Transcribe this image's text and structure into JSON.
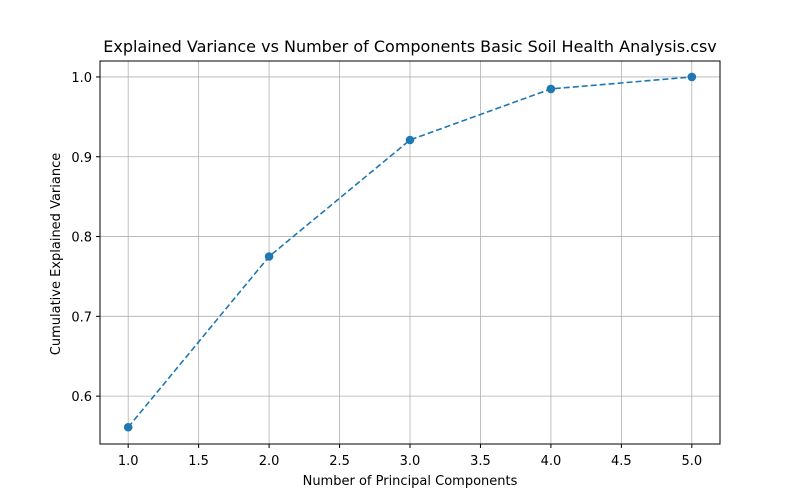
{
  "chart_data": {
    "type": "line",
    "title": "Explained Variance vs Number of Components Basic Soil Health Analysis.csv",
    "xlabel": "Number of Principal Components",
    "ylabel": "Cumulative Explained Variance",
    "xlim": [
      0.8,
      5.2
    ],
    "ylim": [
      0.54,
      1.02
    ],
    "xticks": [
      1.0,
      1.5,
      2.0,
      2.5,
      3.0,
      3.5,
      4.0,
      4.5,
      5.0
    ],
    "xtick_labels": [
      "1.0",
      "1.5",
      "2.0",
      "2.5",
      "3.0",
      "3.5",
      "4.0",
      "4.5",
      "5.0"
    ],
    "yticks": [
      0.6,
      0.7,
      0.8,
      0.9,
      1.0
    ],
    "ytick_labels": [
      "0.6",
      "0.7",
      "0.8",
      "0.9",
      "1.0"
    ],
    "grid": true,
    "series": [
      {
        "x": [
          1,
          2,
          3,
          4,
          5
        ],
        "values": [
          0.561,
          0.775,
          0.921,
          0.985,
          1.0
        ],
        "color": "#1f77b4",
        "line_style": "dashed",
        "marker": "circle"
      }
    ]
  },
  "colors": {
    "series": "#1f77b4",
    "grid": "#b0b0b0",
    "axes": "#000000"
  }
}
